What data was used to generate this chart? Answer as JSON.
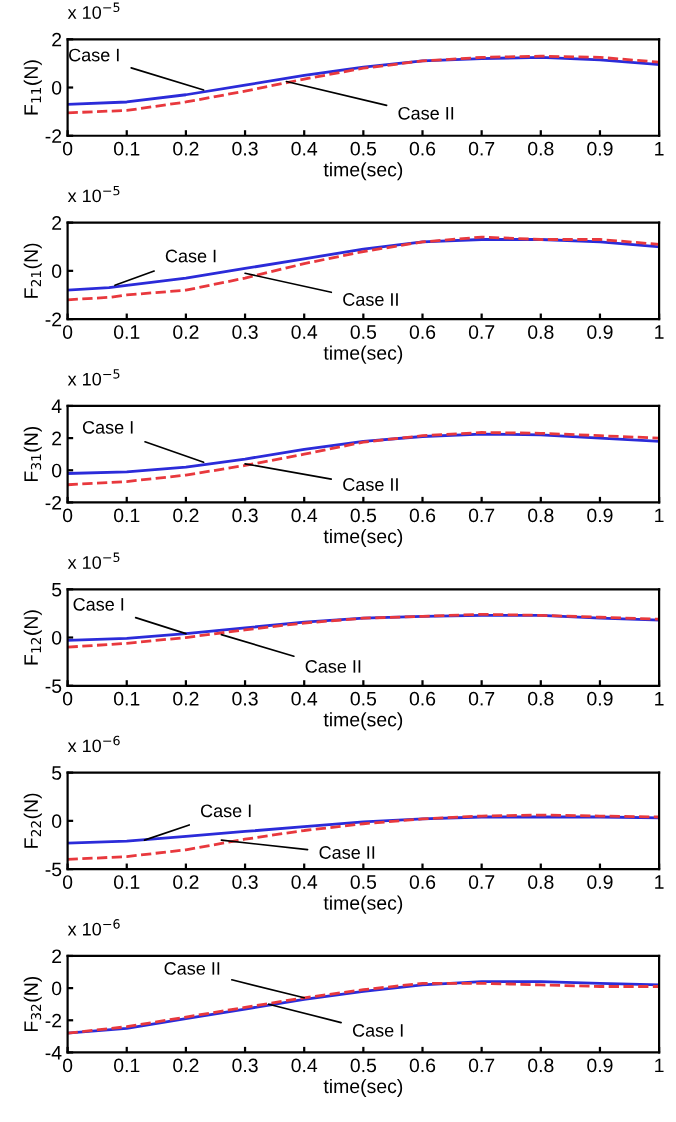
{
  "chart_data": [
    {
      "type": "line",
      "xlabel": "time(sec)",
      "ylabel": "F$_{11}$(N)",
      "x": [
        0,
        0.1,
        0.2,
        0.3,
        0.4,
        0.5,
        0.6,
        0.7,
        0.8,
        0.9,
        1
      ],
      "xlim": [
        0,
        1
      ],
      "xticks": [
        0,
        0.1,
        0.2,
        0.3,
        0.4,
        0.5,
        0.6,
        0.7,
        0.8,
        0.9,
        1
      ],
      "ylim": [
        -2,
        2
      ],
      "yticks": [
        -2,
        0,
        2
      ],
      "series": [
        {
          "color": "#2b2bd9",
          "line_style": "solid",
          "values": [
            -0.7,
            -0.6,
            -0.3,
            0.1,
            0.5,
            0.85,
            1.1,
            1.2,
            1.25,
            1.15,
            0.95
          ]
        },
        {
          "color": "#e8383d",
          "line_style": "dashed",
          "values": [
            -1.05,
            -0.95,
            -0.6,
            -0.15,
            0.35,
            0.8,
            1.1,
            1.25,
            1.3,
            1.25,
            1.05
          ]
        }
      ],
      "annotations": [
        "x 10$^{−5}$",
        {
          "text": "Case I",
          "x": 0.23,
          "y": -0.1
        },
        {
          "text": "Case II",
          "x": 0.37,
          "y": 0.25
        }
      ]
    },
    {
      "type": "line",
      "xlabel": "time(sec)",
      "ylabel": "F$_{21}$(N)",
      "x": [
        0,
        0.07,
        0.1,
        0.2,
        0.3,
        0.4,
        0.5,
        0.6,
        0.7,
        0.8,
        0.9,
        1
      ],
      "xlim": [
        0,
        1
      ],
      "xticks": [
        0,
        0.1,
        0.2,
        0.3,
        0.4,
        0.5,
        0.6,
        0.7,
        0.8,
        0.9,
        1
      ],
      "ylim": [
        -2,
        2
      ],
      "yticks": [
        -2,
        0,
        2
      ],
      "series": [
        {
          "color": "#2b2bd9",
          "line_style": "solid",
          "values": [
            -0.8,
            -0.7,
            -0.6,
            -0.3,
            0.1,
            0.5,
            0.9,
            1.2,
            1.3,
            1.3,
            1.2,
            1.0
          ]
        },
        {
          "color": "#e8383d",
          "line_style": "dashed",
          "values": [
            -1.2,
            -1.1,
            -1.0,
            -0.8,
            -0.3,
            0.3,
            0.8,
            1.2,
            1.4,
            1.3,
            1.3,
            1.1
          ]
        }
      ],
      "annotations": [
        "x 10$^{−5}$",
        {
          "text": "Case I",
          "x": 0.08,
          "y": -0.6
        },
        {
          "text": "Case II",
          "x": 0.3,
          "y": -0.1
        }
      ]
    },
    {
      "type": "line",
      "xlabel": "time(sec)",
      "ylabel": "F$_{31}$(N)",
      "x": [
        0,
        0.1,
        0.2,
        0.3,
        0.4,
        0.5,
        0.6,
        0.7,
        0.8,
        0.9,
        1
      ],
      "xlim": [
        0,
        1
      ],
      "xticks": [
        0,
        0.1,
        0.2,
        0.3,
        0.4,
        0.5,
        0.6,
        0.7,
        0.8,
        0.9,
        1
      ],
      "ylim": [
        -2,
        4
      ],
      "yticks": [
        -2,
        0,
        2,
        4
      ],
      "series": [
        {
          "color": "#2b2bd9",
          "line_style": "solid",
          "values": [
            -0.2,
            -0.1,
            0.2,
            0.7,
            1.3,
            1.8,
            2.1,
            2.25,
            2.2,
            2.0,
            1.8
          ]
        },
        {
          "color": "#e8383d",
          "line_style": "dashed",
          "values": [
            -0.9,
            -0.7,
            -0.3,
            0.3,
            1.0,
            1.75,
            2.15,
            2.35,
            2.3,
            2.15,
            2.0
          ]
        }
      ],
      "annotations": [
        "x 10$^{−5}$",
        {
          "text": "Case I",
          "x": 0.23,
          "y": 0.5
        },
        {
          "text": "Case II",
          "x": 0.3,
          "y": 0.4
        }
      ]
    },
    {
      "type": "line",
      "xlabel": "time(sec)",
      "ylabel": "F$_{12}$(N)",
      "x": [
        0,
        0.1,
        0.2,
        0.3,
        0.4,
        0.5,
        0.6,
        0.7,
        0.8,
        0.9,
        1
      ],
      "xlim": [
        0,
        1
      ],
      "xticks": [
        0,
        0.1,
        0.2,
        0.3,
        0.4,
        0.5,
        0.6,
        0.7,
        0.8,
        0.9,
        1
      ],
      "ylim": [
        -5,
        5
      ],
      "yticks": [
        -5,
        0,
        5
      ],
      "series": [
        {
          "color": "#2b2bd9",
          "line_style": "solid",
          "values": [
            -0.3,
            -0.1,
            0.4,
            1.0,
            1.6,
            2.0,
            2.2,
            2.3,
            2.3,
            2.0,
            1.8
          ]
        },
        {
          "color": "#e8383d",
          "line_style": "dashed",
          "values": [
            -1.0,
            -0.6,
            0.0,
            0.8,
            1.5,
            2.0,
            2.2,
            2.4,
            2.3,
            2.1,
            1.9
          ]
        }
      ],
      "annotations": [
        "x 10$^{−5}$",
        {
          "text": "Case I",
          "x": 0.2,
          "y": 0.4
        },
        {
          "text": "Case II",
          "x": 0.26,
          "y": 0.3
        }
      ]
    },
    {
      "type": "line",
      "xlabel": "time(sec)",
      "ylabel": "F$_{22}$(N)",
      "x": [
        0,
        0.1,
        0.2,
        0.3,
        0.4,
        0.5,
        0.6,
        0.7,
        0.8,
        0.9,
        1
      ],
      "xlim": [
        0,
        1
      ],
      "xticks": [
        0,
        0.1,
        0.2,
        0.3,
        0.4,
        0.5,
        0.6,
        0.7,
        0.8,
        0.9,
        1
      ],
      "ylim": [
        -5,
        5
      ],
      "yticks": [
        -5,
        0,
        5
      ],
      "series": [
        {
          "color": "#2b2bd9",
          "line_style": "solid",
          "values": [
            -2.3,
            -2.1,
            -1.6,
            -1.1,
            -0.6,
            -0.1,
            0.2,
            0.4,
            0.4,
            0.4,
            0.3
          ]
        },
        {
          "color": "#e8383d",
          "line_style": "dashed",
          "values": [
            -4.0,
            -3.7,
            -3.0,
            -1.9,
            -1.0,
            -0.3,
            0.2,
            0.5,
            0.6,
            0.5,
            0.4
          ]
        }
      ],
      "annotations": [
        "x 10$^{−6}$",
        {
          "text": "Case I",
          "x": 0.13,
          "y": -2.0
        },
        {
          "text": "Case II",
          "x": 0.26,
          "y": -2.0
        }
      ]
    },
    {
      "type": "line",
      "xlabel": "time(sec)",
      "ylabel": "F$_{32}$(N)",
      "x": [
        0,
        0.1,
        0.2,
        0.3,
        0.4,
        0.5,
        0.6,
        0.7,
        0.8,
        0.9,
        1
      ],
      "xlim": [
        0,
        1
      ],
      "xticks": [
        0,
        0.1,
        0.2,
        0.3,
        0.4,
        0.5,
        0.6,
        0.7,
        0.8,
        0.9,
        1
      ],
      "ylim": [
        -4,
        2
      ],
      "yticks": [
        -4,
        -2,
        0,
        2
      ],
      "series": [
        {
          "color": "#2b2bd9",
          "line_style": "solid",
          "values": [
            -2.8,
            -2.5,
            -1.9,
            -1.3,
            -0.7,
            -0.2,
            0.2,
            0.4,
            0.4,
            0.3,
            0.2
          ]
        },
        {
          "color": "#e8383d",
          "line_style": "dashed",
          "values": [
            -2.8,
            -2.4,
            -1.8,
            -1.2,
            -0.6,
            -0.1,
            0.3,
            0.3,
            0.2,
            0.1,
            0.1
          ]
        }
      ],
      "annotations": [
        "x 10$^{−6}$",
        {
          "text": "Case II",
          "x": 0.4,
          "y": -0.6
        },
        {
          "text": "Case I",
          "x": 0.34,
          "y": -1.0
        }
      ]
    }
  ]
}
